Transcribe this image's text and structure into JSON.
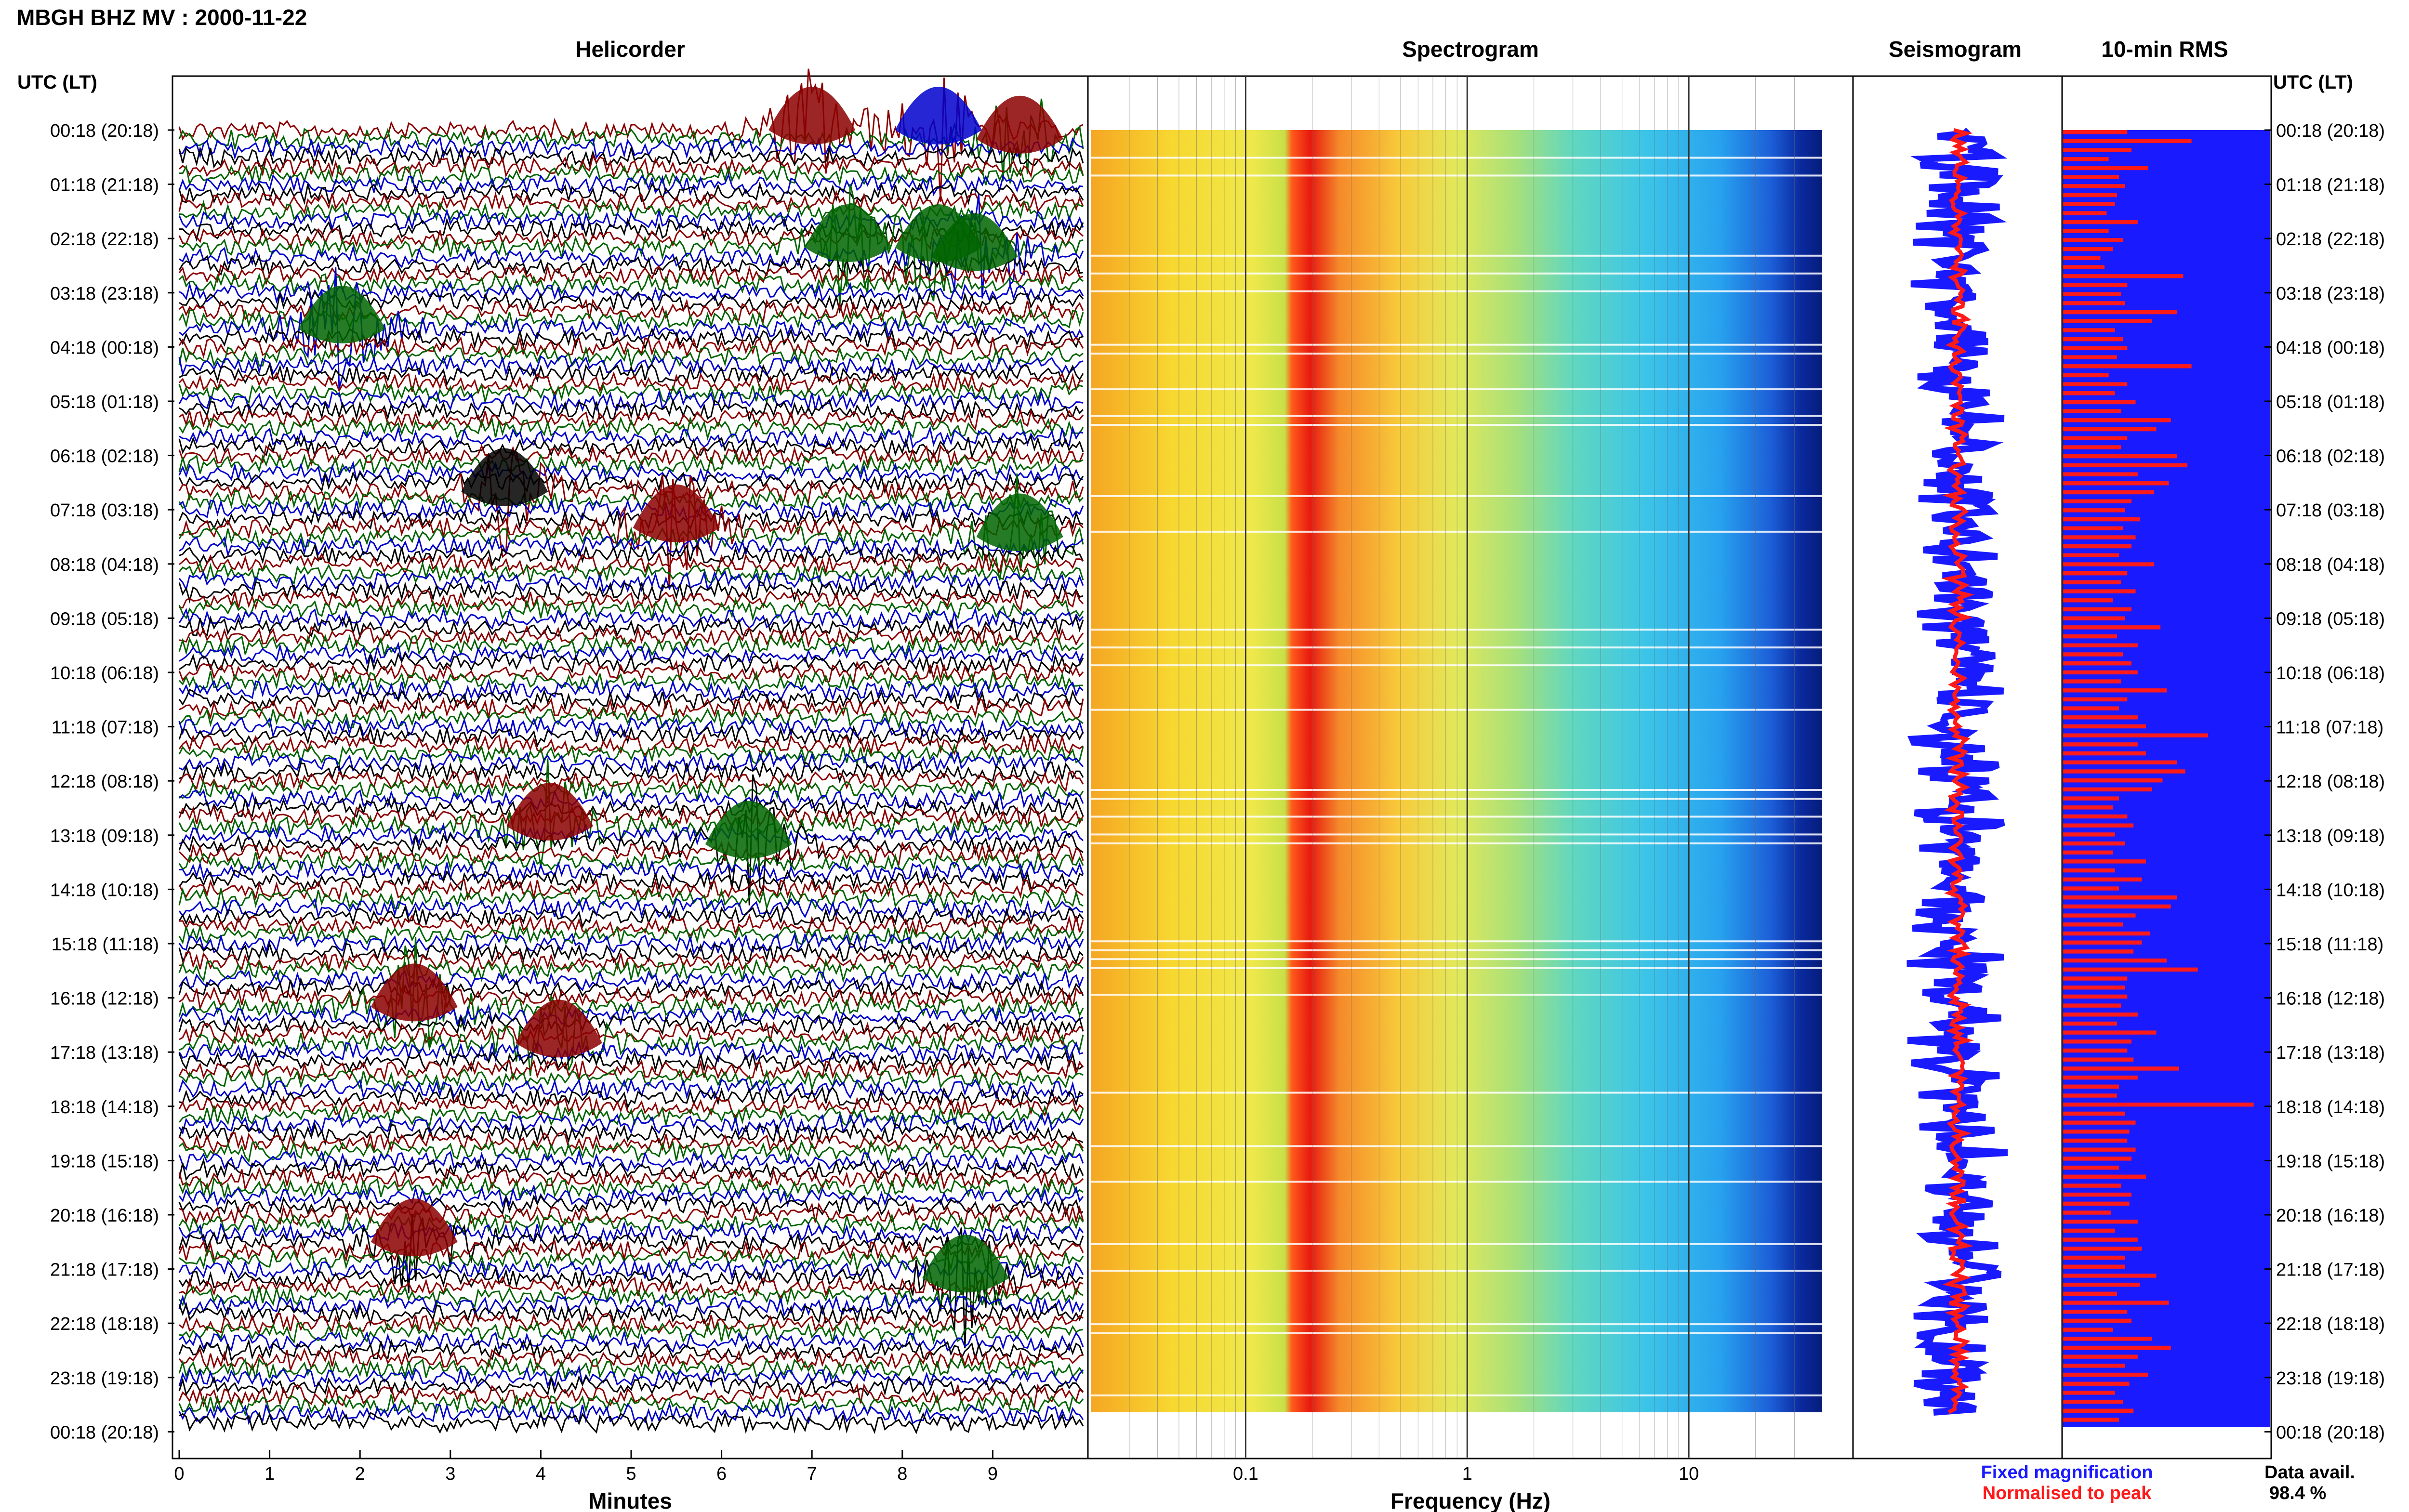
{
  "title": "MBGH BHZ MV : 2000-11-22",
  "panels": {
    "helicorder": "Helicorder",
    "spectrogram": "Spectrogram",
    "seismogram": "Seismogram",
    "rms": "10-min RMS"
  },
  "time_axis_label": "UTC (LT)",
  "row_labels": [
    "00:18 (20:18)",
    "01:18 (21:18)",
    "02:18 (22:18)",
    "03:18 (23:18)",
    "04:18 (00:18)",
    "05:18 (01:18)",
    "06:18 (02:18)",
    "07:18 (03:18)",
    "08:18 (04:18)",
    "09:18 (05:18)",
    "10:18 (06:18)",
    "11:18 (07:18)",
    "12:18 (08:18)",
    "13:18 (09:18)",
    "14:18 (10:18)",
    "15:18 (11:18)",
    "16:18 (12:18)",
    "17:18 (13:18)",
    "18:18 (14:18)",
    "19:18 (15:18)",
    "20:18 (16:18)",
    "21:18 (17:18)",
    "22:18 (18:18)",
    "23:18 (19:18)",
    "00:18 (20:18)"
  ],
  "helicorder_axis": {
    "label": "Minutes",
    "ticks": [
      "0",
      "1",
      "2",
      "3",
      "4",
      "5",
      "6",
      "7",
      "8",
      "9"
    ]
  },
  "spectrogram_axis": {
    "label": "Frequency (Hz)",
    "ticks": [
      "0.1",
      "1",
      "10"
    ],
    "scale": "log"
  },
  "legend": {
    "fixed": "Fixed magnification",
    "normalised": "Normalised to peak",
    "fixed_color": "#1a1aff",
    "normalised_color": "#ff1a1a"
  },
  "data_avail": {
    "label": "Data avail.",
    "value": "98.4 %"
  },
  "trace_colors": [
    "#000000",
    "#8b0000",
    "#006400",
    "#0000cd"
  ],
  "chart_data": {
    "type": "helicorder",
    "rows": 144,
    "minutes_per_row": 10,
    "x_range_minutes": [
      0,
      10
    ],
    "frequency_range_hz": [
      0.02,
      40
    ],
    "events": [
      {
        "row": 0,
        "minute": 7.0,
        "color": "dark-red"
      },
      {
        "row": 0,
        "minute": 8.4,
        "color": "blue"
      },
      {
        "row": 1,
        "minute": 9.3,
        "color": "dark-red"
      },
      {
        "row": 13,
        "minute": 7.4,
        "color": "green"
      },
      {
        "row": 13,
        "minute": 8.4,
        "color": "green"
      },
      {
        "row": 14,
        "minute": 8.8,
        "color": "green"
      },
      {
        "row": 22,
        "minute": 1.8,
        "color": "green"
      },
      {
        "row": 40,
        "minute": 3.6,
        "color": "black"
      },
      {
        "row": 44,
        "minute": 5.5,
        "color": "dark-red"
      },
      {
        "row": 45,
        "minute": 9.3,
        "color": "green"
      },
      {
        "row": 77,
        "minute": 4.1,
        "color": "dark-red"
      },
      {
        "row": 79,
        "minute": 6.3,
        "color": "green"
      },
      {
        "row": 97,
        "minute": 2.6,
        "color": "dark-red"
      },
      {
        "row": 101,
        "minute": 4.2,
        "color": "dark-red"
      },
      {
        "row": 123,
        "minute": 2.6,
        "color": "dark-red"
      },
      {
        "row": 127,
        "minute": 8.7,
        "color": "green"
      }
    ],
    "rms_values": [
      0.31,
      0.62,
      0.33,
      0.22,
      0.41,
      0.27,
      0.3,
      0.26,
      0.25,
      0.21,
      0.36,
      0.22,
      0.29,
      0.24,
      0.18,
      0.2,
      0.58,
      0.31,
      0.28,
      0.3,
      0.55,
      0.43,
      0.25,
      0.29,
      0.31,
      0.26,
      0.62,
      0.22,
      0.31,
      0.25,
      0.35,
      0.28,
      0.52,
      0.45,
      0.31,
      0.28,
      0.55,
      0.6,
      0.36,
      0.51,
      0.44,
      0.33,
      0.3,
      0.37,
      0.29,
      0.35,
      0.33,
      0.27,
      0.44,
      0.31,
      0.28,
      0.35,
      0.24,
      0.33,
      0.3,
      0.47,
      0.26,
      0.36,
      0.29,
      0.33,
      0.36,
      0.28,
      0.5,
      0.31,
      0.27,
      0.36,
      0.4,
      0.7,
      0.36,
      0.4,
      0.55,
      0.59,
      0.48,
      0.43,
      0.27,
      0.24,
      0.31,
      0.34,
      0.25,
      0.3,
      0.24,
      0.4,
      0.25,
      0.38,
      0.27,
      0.55,
      0.52,
      0.35,
      0.29,
      0.42,
      0.38,
      0.34,
      0.5,
      0.65,
      0.31,
      0.3,
      0.31,
      0.28,
      0.36,
      0.26,
      0.45,
      0.33,
      0.31,
      0.34,
      0.56,
      0.36,
      0.27,
      0.26,
      0.92,
      0.3,
      0.35,
      0.32,
      0.31,
      0.35,
      0.33,
      0.27,
      0.4,
      0.28,
      0.33,
      0.32,
      0.23,
      0.36,
      0.25,
      0.36,
      0.38,
      0.3,
      0.3,
      0.45,
      0.37,
      0.26,
      0.51,
      0.31,
      0.33,
      0.24,
      0.43,
      0.52,
      0.36,
      0.3,
      0.41,
      0.32,
      0.25,
      0.29,
      0.34,
      0.27
    ],
    "rms_normalised": "red bars",
    "rms_fixed": "blue background"
  }
}
